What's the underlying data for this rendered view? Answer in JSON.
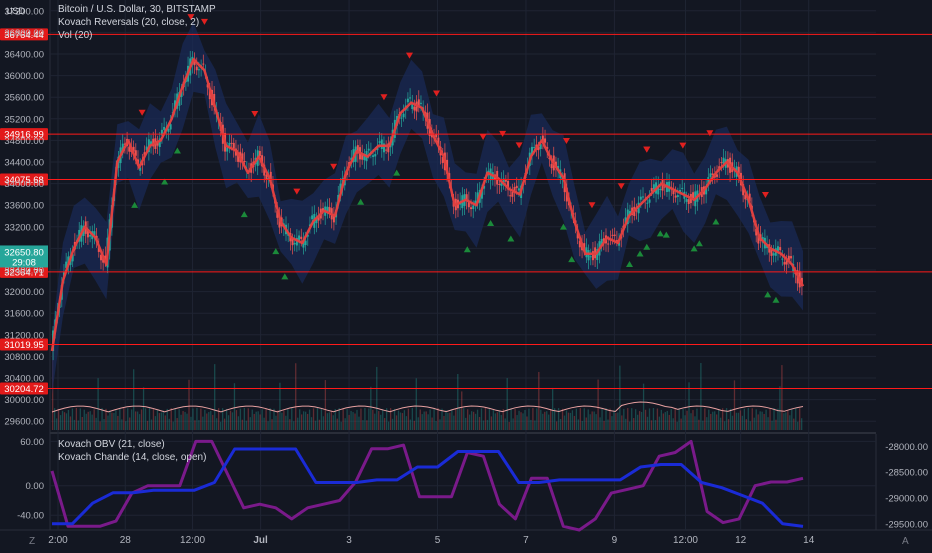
{
  "header": {
    "symbol_line": "Bitcoin / U.S. Dollar, 30, BITSTAMP",
    "indicator_1": "Kovach Reversals (20, close, 2)",
    "indicator_2": "Vol (20)",
    "currency": "USD"
  },
  "lower_pane": {
    "indicator_1": "Kovach OBV (21, close)",
    "indicator_2": "Kovach Chande (14, close, open)"
  },
  "footer": {
    "left_icon": "Z",
    "right_icon": "A"
  },
  "colors": {
    "background": "#131722",
    "grid": "#1f2433",
    "up_candle": "#26a69a",
    "down_candle": "#ef5350",
    "level_line": "#ff1a1a",
    "moving_average": "#e04040",
    "band_fill": "#1a2a55",
    "obv_line": "#1a2bd6",
    "chande_line": "#7a1a8a",
    "current_price_badge": "#26a69a",
    "volume_ma": "#e8a0a0"
  },
  "chart_data": {
    "type": "candlestick",
    "price_axis_ticks": [
      "37200.00",
      "36800.00",
      "36400.00",
      "36000.00",
      "35600.00",
      "35200.00",
      "34800.00",
      "34400.00",
      "34000.00",
      "33600.00",
      "33200.00",
      "32800.00",
      "32400.00",
      "32000.00",
      "31600.00",
      "31200.00",
      "30800.00",
      "30400.00",
      "30000.00",
      "29600.00"
    ],
    "price_axis_values": [
      37200,
      36800,
      36400,
      36000,
      35600,
      35200,
      34800,
      34400,
      34000,
      33600,
      33200,
      32800,
      32400,
      32000,
      31600,
      31200,
      30800,
      30400,
      30000,
      29600
    ],
    "ylim": [
      29400,
      37400
    ],
    "time_axis_labels": [
      "2:00",
      "28",
      "12:00",
      "Jul",
      "3",
      "5",
      "7",
      "9",
      "12:00",
      "12",
      "14"
    ],
    "time_axis_positions": [
      0,
      0.089,
      0.178,
      0.268,
      0.385,
      0.502,
      0.619,
      0.736,
      0.83,
      0.903,
      0.993
    ],
    "horizontal_levels": [
      {
        "label": "36764.44",
        "value": 36764.44
      },
      {
        "label": "34916.99",
        "value": 34916.99
      },
      {
        "label": "34075.68",
        "value": 34075.68
      },
      {
        "label": "32364.71",
        "value": 32364.71
      },
      {
        "label": "31019.95",
        "value": 31019.95
      },
      {
        "label": "30204.72",
        "value": 30204.72
      }
    ],
    "current_price": {
      "value_label": "32650.80",
      "countdown": "29:08",
      "value": 32650.8
    },
    "price_path": [
      30900,
      32200,
      32800,
      33200,
      33000,
      32500,
      34400,
      34800,
      34300,
      34700,
      34800,
      35200,
      35800,
      36300,
      36100,
      35400,
      34700,
      34600,
      34200,
      34500,
      34100,
      33300,
      33000,
      32900,
      33300,
      33500,
      33400,
      34200,
      34600,
      34500,
      34700,
      34700,
      35300,
      35500,
      35400,
      34900,
      34500,
      33600,
      33700,
      33600,
      34200,
      34100,
      33900,
      33800,
      34500,
      34800,
      34400,
      34100,
      33300,
      32700,
      32700,
      33000,
      32900,
      33400,
      33600,
      33800,
      34000,
      33900,
      33800,
      33700,
      33900,
      34200,
      34400,
      34200,
      33700,
      33000,
      32800,
      32700,
      32500,
      32100
    ],
    "reversal_sell_x": [
      0.12,
      0.185,
      0.203,
      0.27,
      0.326,
      0.375,
      0.442,
      0.476,
      0.512,
      0.574,
      0.6,
      0.622,
      0.685,
      0.719,
      0.758,
      0.792,
      0.792,
      0.84,
      0.876,
      0.95
    ],
    "reversal_buy_x": [
      0.11,
      0.15,
      0.167,
      0.256,
      0.298,
      0.31,
      0.411,
      0.459,
      0.553,
      0.584,
      0.611,
      0.681,
      0.692,
      0.769,
      0.783,
      0.792,
      0.81,
      0.818,
      0.855,
      0.862,
      0.884,
      0.953,
      0.964
    ],
    "lower_axis_left_ticks": [
      "60.00",
      "0.00",
      "-40.00"
    ],
    "lower_axis_left_values": [
      60,
      0,
      -40
    ],
    "lower_ylim_left": [
      -60,
      70
    ],
    "lower_axis_right_ticks": [
      "-28000.00",
      "-28500.00",
      "-29000.00",
      "-29500.00"
    ],
    "lower_axis_right_values": [
      -28000,
      -28500,
      -29000,
      -29500
    ],
    "lower_ylim_right": [
      -29620,
      -27760
    ],
    "obv_series": [
      -29500,
      -29500,
      -29100,
      -28900,
      -28900,
      -28850,
      -28850,
      -28850,
      -28700,
      -28050,
      -28050,
      -28050,
      -28050,
      -28700,
      -28700,
      -28700,
      -28650,
      -28650,
      -28400,
      -28400,
      -28100,
      -28100,
      -28100,
      -28700,
      -28700,
      -28650,
      -28650,
      -28650,
      -28650,
      -28400,
      -28350,
      -28350,
      -28700,
      -28800,
      -28950,
      -29100,
      -29500,
      -29550
    ],
    "chande_series": [
      20,
      -55,
      -55,
      -55,
      -48,
      -10,
      0,
      0,
      0,
      60,
      60,
      15,
      -30,
      -25,
      -30,
      -45,
      -30,
      -25,
      -20,
      5,
      50,
      50,
      55,
      -15,
      -15,
      -15,
      45,
      40,
      -25,
      -45,
      10,
      10,
      -55,
      -60,
      -45,
      -10,
      -5,
      0,
      40,
      45,
      60,
      -35,
      -50,
      -45,
      0,
      5,
      5,
      10
    ]
  }
}
